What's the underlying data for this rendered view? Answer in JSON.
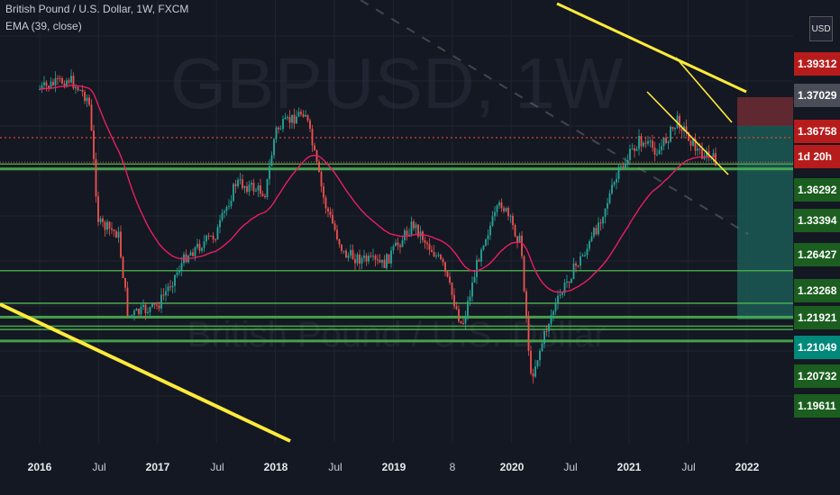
{
  "header": {
    "symbol_line": "British Pound / U.S. Dollar, 1W, FXCM",
    "indicator_line": "EMA (39, close)"
  },
  "currency_button": "USD",
  "watermark": {
    "symbol": "GBPUSD, 1W",
    "name": "British Pound / U.S. Dollar"
  },
  "price_axis": {
    "labels": [
      {
        "text": "1.39312",
        "color": "#f05350"
      },
      {
        "text": "1.37029",
        "color": "#9598a1"
      },
      {
        "text": "1.36758",
        "color": "#f05350"
      },
      {
        "text": "1d 20h",
        "color": "#f05350"
      },
      {
        "text": "1.36292",
        "color": "#27902a"
      },
      {
        "text": "1.33394",
        "color": "#27902a"
      },
      {
        "text": "1.26427",
        "color": "#27902a"
      },
      {
        "text": "1.23268",
        "color": "#27902a"
      },
      {
        "text": "1.21921",
        "color": "#27902a"
      },
      {
        "text": "1.21049",
        "color": "#1ea59a"
      },
      {
        "text": "1.20732",
        "color": "#27902a"
      },
      {
        "text": "1.19611",
        "color": "#27902a"
      }
    ]
  },
  "time_axis": {
    "ticks": [
      {
        "label": "2016",
        "bold": true
      },
      {
        "label": "Jul",
        "bold": false
      },
      {
        "label": "2017",
        "bold": true
      },
      {
        "label": "Jul",
        "bold": false
      },
      {
        "label": "2018",
        "bold": true
      },
      {
        "label": "Jul",
        "bold": false
      },
      {
        "label": "2019",
        "bold": true
      },
      {
        "label": "8",
        "bold": false
      },
      {
        "label": "2020",
        "bold": true
      },
      {
        "label": "Jul",
        "bold": false
      },
      {
        "label": "2021",
        "bold": true
      },
      {
        "label": "Jul",
        "bold": false
      },
      {
        "label": "2022",
        "bold": true
      }
    ]
  },
  "colors": {
    "background": "#141822",
    "bull": "#26a69a",
    "bear": "#ef5350",
    "ema": "#e91e63",
    "support": "#4caf50",
    "trend": "#ffeb3b",
    "resistance_dotted": "#f44336"
  },
  "chart_data": {
    "type": "candlestick",
    "timeframe": "1W",
    "indicator": "EMA (39, close)",
    "x_range": [
      "2016-01",
      "2022-01"
    ],
    "y_range": [
      1.15,
      1.47
    ],
    "close_series": [
      {
        "date": "2016-01",
        "close": 1.44
      },
      {
        "date": "2016-04",
        "close": 1.45
      },
      {
        "date": "2016-06",
        "close": 1.43
      },
      {
        "date": "2016-07",
        "close": 1.31
      },
      {
        "date": "2016-09",
        "close": 1.3
      },
      {
        "date": "2016-10",
        "close": 1.22
      },
      {
        "date": "2017-01",
        "close": 1.23
      },
      {
        "date": "2017-04",
        "close": 1.28
      },
      {
        "date": "2017-07",
        "close": 1.3
      },
      {
        "date": "2017-09",
        "close": 1.35
      },
      {
        "date": "2017-12",
        "close": 1.34
      },
      {
        "date": "2018-01",
        "close": 1.4
      },
      {
        "date": "2018-04",
        "close": 1.42
      },
      {
        "date": "2018-06",
        "close": 1.33
      },
      {
        "date": "2018-08",
        "close": 1.28
      },
      {
        "date": "2018-12",
        "close": 1.27
      },
      {
        "date": "2019-03",
        "close": 1.31
      },
      {
        "date": "2019-06",
        "close": 1.27
      },
      {
        "date": "2019-08",
        "close": 1.21
      },
      {
        "date": "2019-10",
        "close": 1.29
      },
      {
        "date": "2019-12",
        "close": 1.33
      },
      {
        "date": "2020-02",
        "close": 1.29
      },
      {
        "date": "2020-03",
        "close": 1.16
      },
      {
        "date": "2020-05",
        "close": 1.22
      },
      {
        "date": "2020-07",
        "close": 1.26
      },
      {
        "date": "2020-09",
        "close": 1.29
      },
      {
        "date": "2020-12",
        "close": 1.36
      },
      {
        "date": "2021-02",
        "close": 1.39
      },
      {
        "date": "2021-04",
        "close": 1.38
      },
      {
        "date": "2021-06",
        "close": 1.41
      },
      {
        "date": "2021-08",
        "close": 1.38
      },
      {
        "date": "2021-10",
        "close": 1.37
      }
    ],
    "horizontal_levels": [
      1.39312,
      1.36758,
      1.36292,
      1.33394,
      1.26427,
      1.23268,
      1.21921,
      1.21049,
      1.20732,
      1.19611
    ],
    "trend_lines": "yellow descending trendlines"
  }
}
